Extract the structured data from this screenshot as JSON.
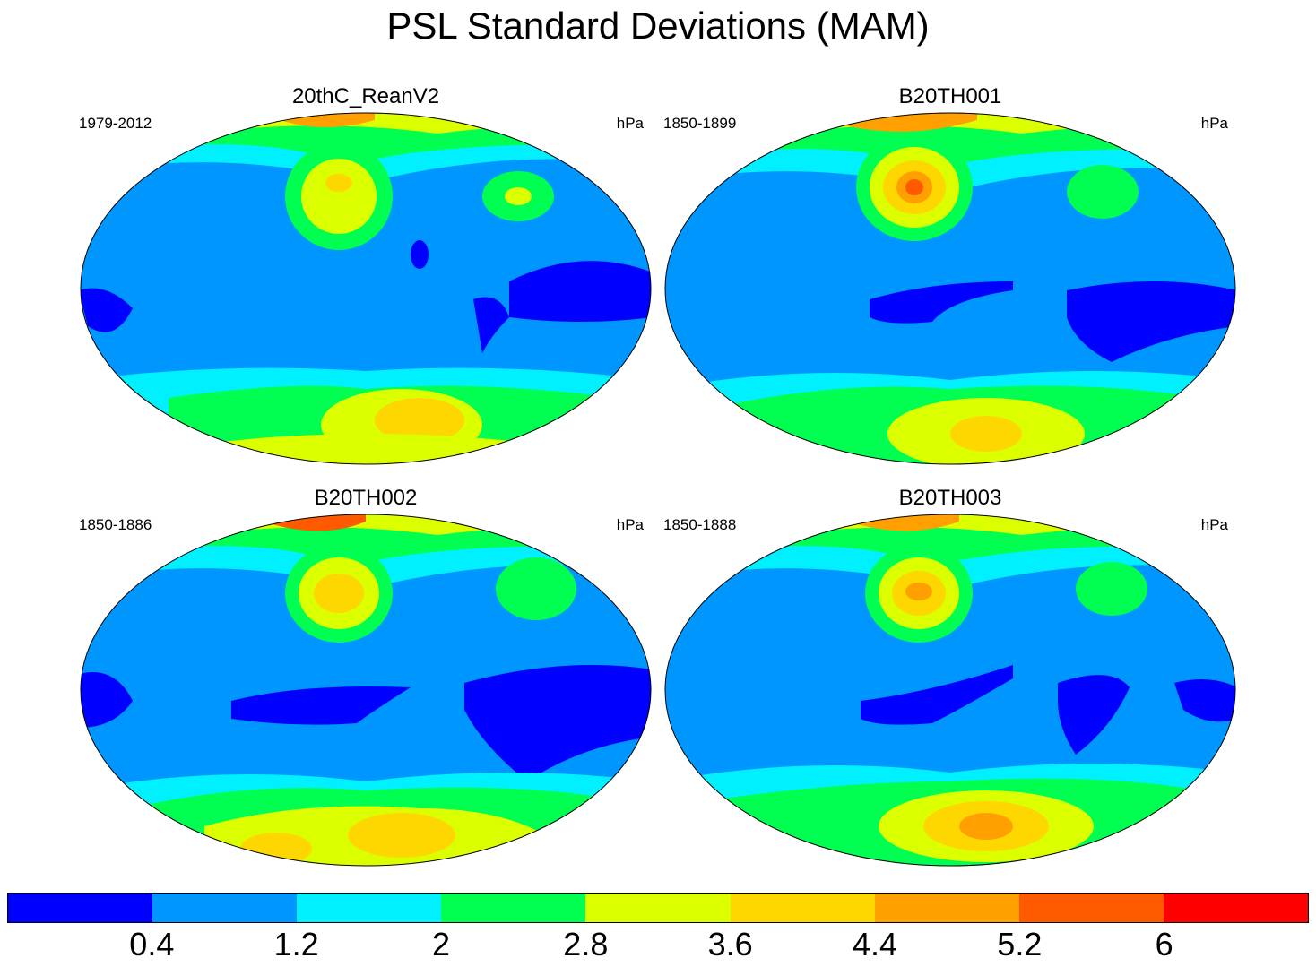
{
  "figure": {
    "title": "PSL Standard Deviations (MAM)"
  },
  "panels": [
    {
      "title": "20thC_ReanV2",
      "period": "1979-2012",
      "units": "hPa"
    },
    {
      "title": "B20TH001",
      "period": "1850-1899",
      "units": "hPa"
    },
    {
      "title": "B20TH002",
      "period": "1850-1886",
      "units": "hPa"
    },
    {
      "title": "B20TH003",
      "period": "1850-1888",
      "units": "hPa"
    }
  ],
  "colorbar": {
    "colors": [
      "#0000ff",
      "#0096ff",
      "#00f0ff",
      "#00ff50",
      "#dcff00",
      "#ffd700",
      "#ffa000",
      "#ff5a00",
      "#ff0000"
    ],
    "labels": [
      "0.4",
      "1.2",
      "2",
      "2.8",
      "3.6",
      "4.4",
      "5.2",
      "6"
    ]
  }
}
